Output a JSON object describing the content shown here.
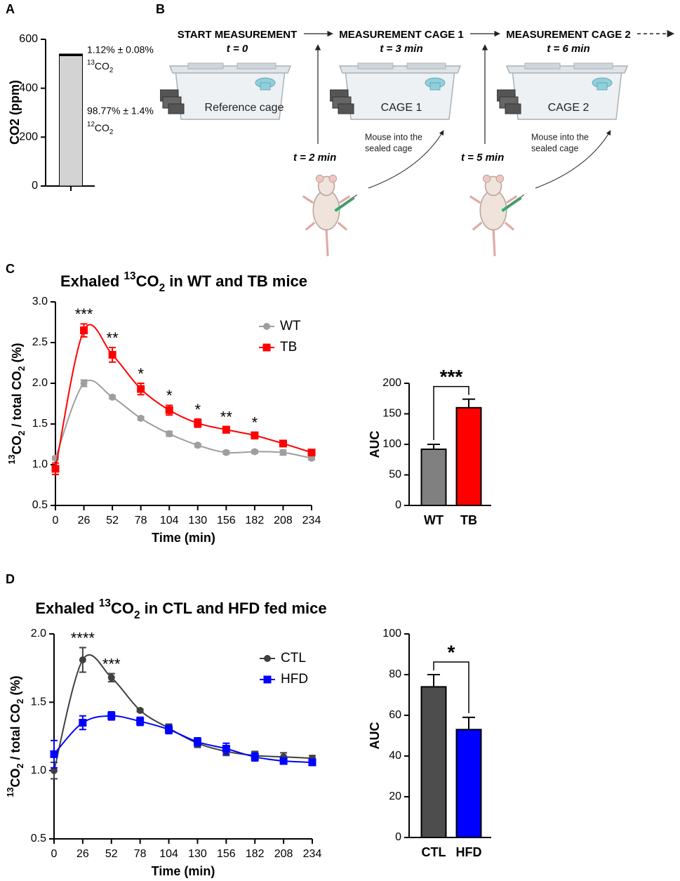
{
  "panel_labels": [
    "A",
    "B",
    "C",
    "D"
  ],
  "chart_data": [
    {
      "type": "stacked_bar",
      "categories": [
        null
      ],
      "series": [
        {
          "color": "#d3d3d3",
          "values": [
            533
          ]
        },
        {
          "color": "#000000",
          "values": [
            7
          ]
        }
      ],
      "ylabel": "CO2 (ppm)",
      "ylim": [
        0,
        600
      ],
      "yticks": [
        0,
        200,
        400,
        600
      ],
      "annotations": [
        {
          "text": "1.12% ± 0.08%",
          "isotope": [
            {
              "text": "13",
              "shift": "sup"
            },
            {
              "text": "CO"
            },
            {
              "text": "2",
              "shift": "sub"
            }
          ]
        },
        {
          "text": "98.77% ± 1.4%",
          "isotope": [
            {
              "text": "12",
              "shift": "sup"
            },
            {
              "text": "CO"
            },
            {
              "text": "2",
              "shift": "sub"
            }
          ]
        }
      ]
    },
    {
      "type": "line",
      "title": [
        {
          "text": "Exhaled "
        },
        {
          "text": "13",
          "shift": "sup"
        },
        {
          "text": "CO"
        },
        {
          "text": "2",
          "shift": "sub"
        },
        {
          "text": " in WT and TB mice"
        }
      ],
      "x": [
        0,
        26,
        52,
        78,
        104,
        130,
        156,
        182,
        208,
        234
      ],
      "series": [
        {
          "name": "WT",
          "color": "#9e9e9e",
          "marker": "circle",
          "values": [
            1.08,
            2.0,
            1.83,
            1.57,
            1.38,
            1.24,
            1.15,
            1.16,
            1.15,
            1.08
          ],
          "errors": [
            0.02,
            0.04,
            0.02,
            0.02,
            0.03,
            0.02,
            0.02,
            0.02,
            0.03,
            0.02
          ]
        },
        {
          "name": "TB",
          "color": "#ff0000",
          "marker": "square",
          "values": [
            0.95,
            2.65,
            2.35,
            1.93,
            1.67,
            1.51,
            1.43,
            1.36,
            1.26,
            1.15
          ],
          "errors": [
            0.07,
            0.08,
            0.09,
            0.07,
            0.06,
            0.05,
            0.04,
            0.04,
            0.02,
            0.02
          ]
        }
      ],
      "annotations": [
        {
          "x": 26,
          "text": "***"
        },
        {
          "x": 52,
          "text": "**"
        },
        {
          "x": 78,
          "text": "*"
        },
        {
          "x": 104,
          "text": "*"
        },
        {
          "x": 130,
          "text": "*"
        },
        {
          "x": 156,
          "text": "**"
        },
        {
          "x": 182,
          "text": "*"
        }
      ],
      "xlabel": "Time (min)",
      "ylabel": [
        {
          "text": "13",
          "shift": "sup"
        },
        {
          "text": "CO"
        },
        {
          "text": "2",
          "shift": "sub"
        },
        {
          "text": " / total CO"
        },
        {
          "text": "2",
          "shift": "sub"
        },
        {
          "text": " (%)"
        }
      ],
      "xlim": [
        0,
        234
      ],
      "xticks": [
        0,
        26,
        52,
        78,
        104,
        130,
        156,
        182,
        208,
        234
      ],
      "ylim": [
        0.5,
        3.0
      ],
      "yticks": [
        0.5,
        {
          "value": 1,
          "label": "1.0"
        },
        1.5,
        {
          "value": 2,
          "label": "2.0"
        },
        2.5,
        {
          "value": 3,
          "label": "3.0"
        }
      ],
      "legend": "upper right"
    },
    {
      "type": "bar",
      "categories": [
        "WT",
        "TB"
      ],
      "values": [
        92,
        160
      ],
      "errors": [
        8,
        14
      ],
      "colors": [
        "#808080",
        "#ff0000"
      ],
      "ylabel": "AUC",
      "ylim": [
        0,
        200
      ],
      "yticks": [
        0,
        50,
        100,
        150,
        200
      ],
      "significance": "***"
    },
    {
      "type": "line",
      "title": [
        {
          "text": "Exhaled "
        },
        {
          "text": "13",
          "shift": "sup"
        },
        {
          "text": "CO"
        },
        {
          "text": "2",
          "shift": "sub"
        },
        {
          "text": " in CTL and HFD fed mice"
        }
      ],
      "x": [
        0,
        26,
        52,
        78,
        104,
        130,
        156,
        182,
        208,
        234
      ],
      "series": [
        {
          "name": "CTL",
          "color": "#404040",
          "marker": "circle",
          "values": [
            1.0,
            1.81,
            1.68,
            1.44,
            1.31,
            1.2,
            1.14,
            1.11,
            1.1,
            1.09
          ],
          "errors": [
            0.06,
            0.09,
            0.03,
            0.01,
            0.03,
            0.03,
            0.03,
            0.03,
            0.03,
            0.02
          ]
        },
        {
          "name": "HFD",
          "color": "#0000ff",
          "marker": "square",
          "values": [
            1.12,
            1.35,
            1.4,
            1.36,
            1.3,
            1.21,
            1.16,
            1.1,
            1.07,
            1.06
          ],
          "errors": [
            0.1,
            0.05,
            0.03,
            0.03,
            0.03,
            0.03,
            0.04,
            0.03,
            0.02,
            0.02
          ]
        }
      ],
      "annotations": [
        {
          "x": 26,
          "text": "****"
        },
        {
          "x": 52,
          "text": "***"
        }
      ],
      "xlabel": "Time (min)",
      "ylabel": [
        {
          "text": "13",
          "shift": "sup"
        },
        {
          "text": "CO"
        },
        {
          "text": "2",
          "shift": "sub"
        },
        {
          "text": " / total CO"
        },
        {
          "text": "2",
          "shift": "sub"
        },
        {
          "text": " (%)"
        }
      ],
      "xlim": [
        0,
        234
      ],
      "xticks": [
        0,
        26,
        52,
        78,
        104,
        130,
        156,
        182,
        208,
        234
      ],
      "ylim": [
        0.5,
        2.0
      ],
      "yticks": [
        0.5,
        {
          "value": 1,
          "label": "1.0"
        },
        1.5,
        {
          "value": 2,
          "label": "2.0"
        }
      ],
      "legend": "upper right"
    },
    {
      "type": "bar",
      "categories": [
        "CTL",
        "HFD"
      ],
      "values": [
        74,
        53
      ],
      "errors": [
        6,
        6
      ],
      "colors": [
        "#4d4d4d",
        "#0000ff"
      ],
      "ylabel": "AUC",
      "ylim": [
        0,
        100
      ],
      "yticks": [
        0,
        20,
        40,
        60,
        80,
        100
      ],
      "significance": "*"
    }
  ],
  "diagram": {
    "steps": [
      {
        "label": "START MEASUREMENT",
        "time": "t = 0",
        "cage": "Reference cage"
      },
      {
        "label": "MEASUREMENT CAGE 1",
        "time": "t = 3 min",
        "cage": "CAGE 1",
        "injection": "t = 2 min",
        "note": [
          "Mouse into the",
          "sealed cage"
        ]
      },
      {
        "label": "MEASUREMENT CAGE 2",
        "time": "t = 6 min",
        "cage": "CAGE 2",
        "injection": "t = 5 min",
        "note": [
          "Mouse into the",
          "sealed cage"
        ]
      }
    ]
  }
}
